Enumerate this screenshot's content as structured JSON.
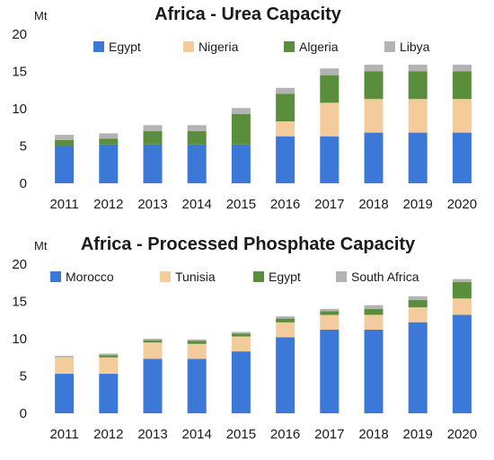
{
  "chart_data": [
    {
      "type": "bar",
      "stacked": true,
      "title": "Africa - Urea Capacity",
      "ylabel": "Mt",
      "ylim": [
        0,
        20
      ],
      "yticks": [
        0,
        5,
        10,
        15,
        20
      ],
      "legend_position": "top",
      "grid": false,
      "categories": [
        "2011",
        "2012",
        "2013",
        "2014",
        "2015",
        "2016",
        "2017",
        "2018",
        "2019",
        "2020"
      ],
      "series": [
        {
          "name": "Egypt",
          "color": "#3c78d8",
          "values": [
            5.0,
            5.2,
            5.2,
            5.2,
            5.2,
            6.3,
            6.3,
            6.8,
            6.8,
            6.8
          ]
        },
        {
          "name": "Nigeria",
          "color": "#f4cc9b",
          "values": [
            0.0,
            0.0,
            0.0,
            0.0,
            0.0,
            2.0,
            4.5,
            4.5,
            4.5,
            4.5
          ]
        },
        {
          "name": "Algeria",
          "color": "#5b8e3c",
          "values": [
            0.8,
            0.8,
            1.8,
            1.8,
            4.1,
            3.7,
            3.7,
            3.7,
            3.7,
            3.7
          ]
        },
        {
          "name": "Libya",
          "color": "#b3b3b3",
          "values": [
            0.7,
            0.7,
            0.8,
            0.8,
            0.8,
            0.8,
            0.9,
            0.9,
            0.9,
            0.9
          ]
        }
      ]
    },
    {
      "type": "bar",
      "stacked": true,
      "title": "Africa - Processed Phosphate Capacity",
      "ylabel": "Mt",
      "ylim": [
        0,
        20
      ],
      "yticks": [
        0,
        5,
        10,
        15,
        20
      ],
      "legend_position": "top",
      "grid": false,
      "categories": [
        "2011",
        "2012",
        "2013",
        "2014",
        "2015",
        "2016",
        "2017",
        "2018",
        "2019",
        "2020"
      ],
      "series": [
        {
          "name": "Morocco",
          "color": "#3c78d8",
          "values": [
            5.3,
            5.3,
            7.3,
            7.3,
            8.3,
            10.2,
            11.2,
            11.2,
            12.2,
            13.2
          ]
        },
        {
          "name": "Tunisia",
          "color": "#f4cc9b",
          "values": [
            2.2,
            2.2,
            2.2,
            2.0,
            2.0,
            2.0,
            2.0,
            2.0,
            2.0,
            2.2
          ]
        },
        {
          "name": "Egypt",
          "color": "#5b8e3c",
          "values": [
            0.0,
            0.3,
            0.3,
            0.4,
            0.4,
            0.5,
            0.5,
            0.8,
            1.0,
            2.2
          ]
        },
        {
          "name": "South Africa",
          "color": "#b3b3b3",
          "values": [
            0.2,
            0.2,
            0.2,
            0.2,
            0.2,
            0.3,
            0.3,
            0.5,
            0.5,
            0.4
          ]
        }
      ]
    }
  ]
}
